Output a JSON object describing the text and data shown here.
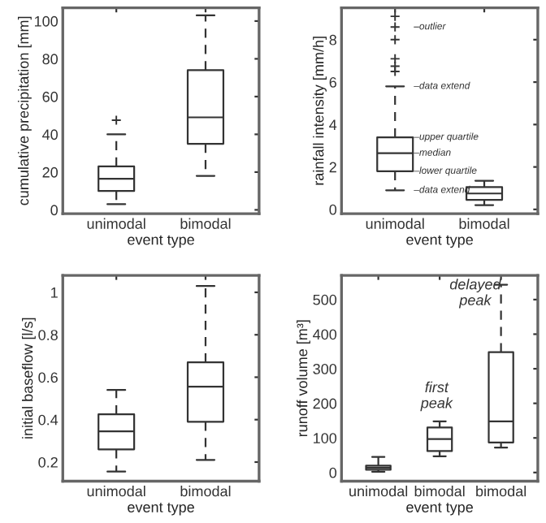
{
  "chart_data": [
    {
      "type": "box",
      "xlabel": "event type",
      "ylabel": "cumulative precipitation [mm]",
      "categories": [
        "unimodal",
        "bimodal"
      ],
      "ylim": [
        -2,
        107
      ],
      "yticks": [
        0,
        20,
        40,
        60,
        80,
        100
      ],
      "line_style": "dashed",
      "marker": "cross",
      "boxes": [
        {
          "low": 3,
          "q1": 10,
          "median": 16.5,
          "q3": 23,
          "high": 40,
          "outliers": [
            47.5
          ]
        },
        {
          "low": 18,
          "q1": 35,
          "median": 49,
          "q3": 74,
          "high": 103
        }
      ]
    },
    {
      "type": "box",
      "xlabel": "event type",
      "ylabel": "rainfall intensity [mm/h]",
      "categories": [
        "unimodal",
        "bimodal"
      ],
      "ylim": [
        -0.2,
        9.5
      ],
      "yticks": [
        0,
        2,
        4,
        6,
        8
      ],
      "line_style": "dashed",
      "marker": "cross",
      "boxes": [
        {
          "low": 0.9,
          "q1": 1.8,
          "median": 2.65,
          "q3": 3.4,
          "high": 5.8,
          "outliers": [
            6.5,
            6.75,
            7.1,
            8.0,
            8.6,
            9.1
          ]
        },
        {
          "low": 0.2,
          "q1": 0.45,
          "median": 0.75,
          "q3": 1.05,
          "high": 1.35
        }
      ],
      "annotations": [
        "–outlier",
        {
          "text": "–data extend",
          "x": "unimodal",
          "y": 5.8
        },
        {
          "text": "–upper quartile",
          "x": "unimodal",
          "y": 3.4
        },
        {
          "text": "–median",
          "x": "unimodal",
          "y": 2.65
        },
        {
          "text": "–lower quartile",
          "x": "unimodal",
          "y": 1.8
        },
        {
          "text": "–data extend",
          "x": "unimodal",
          "y": 0.9
        }
      ]
    },
    {
      "type": "box",
      "xlabel": "event type",
      "ylabel": "initial baseflow [l/s]",
      "categories": [
        "unimodal",
        "bimodal"
      ],
      "ylim": [
        0.11,
        1.08
      ],
      "yticks": [
        0.2,
        0.4,
        0.6,
        0.8,
        1
      ],
      "line_style": "dashed",
      "marker": "cross",
      "boxes": [
        {
          "low": 0.155,
          "q1": 0.26,
          "median": 0.345,
          "q3": 0.425,
          "high": 0.54
        },
        {
          "low": 0.21,
          "q1": 0.39,
          "median": 0.555,
          "q3": 0.67,
          "high": 1.03
        }
      ]
    },
    {
      "type": "box",
      "xlabel": "event type",
      "ylabel": "runoff volume [m³]",
      "categories": [
        "unimodal",
        "bimodal",
        "bimodal"
      ],
      "ylim": [
        -25,
        570
      ],
      "yticks": [
        0,
        100,
        200,
        300,
        400,
        500
      ],
      "line_style": "dashed",
      "marker": "cross",
      "boxes": [
        {
          "low": 2,
          "q1": 8,
          "median": 14,
          "q3": 20,
          "high": 45
        },
        {
          "low": 47,
          "q1": 62,
          "median": 97,
          "q3": 130,
          "high": 148
        },
        {
          "low": 72,
          "q1": 87,
          "median": 148,
          "q3": 348,
          "high": 543
        }
      ],
      "annotations": [
        "first\npeak",
        "delayed\npeak"
      ]
    }
  ]
}
